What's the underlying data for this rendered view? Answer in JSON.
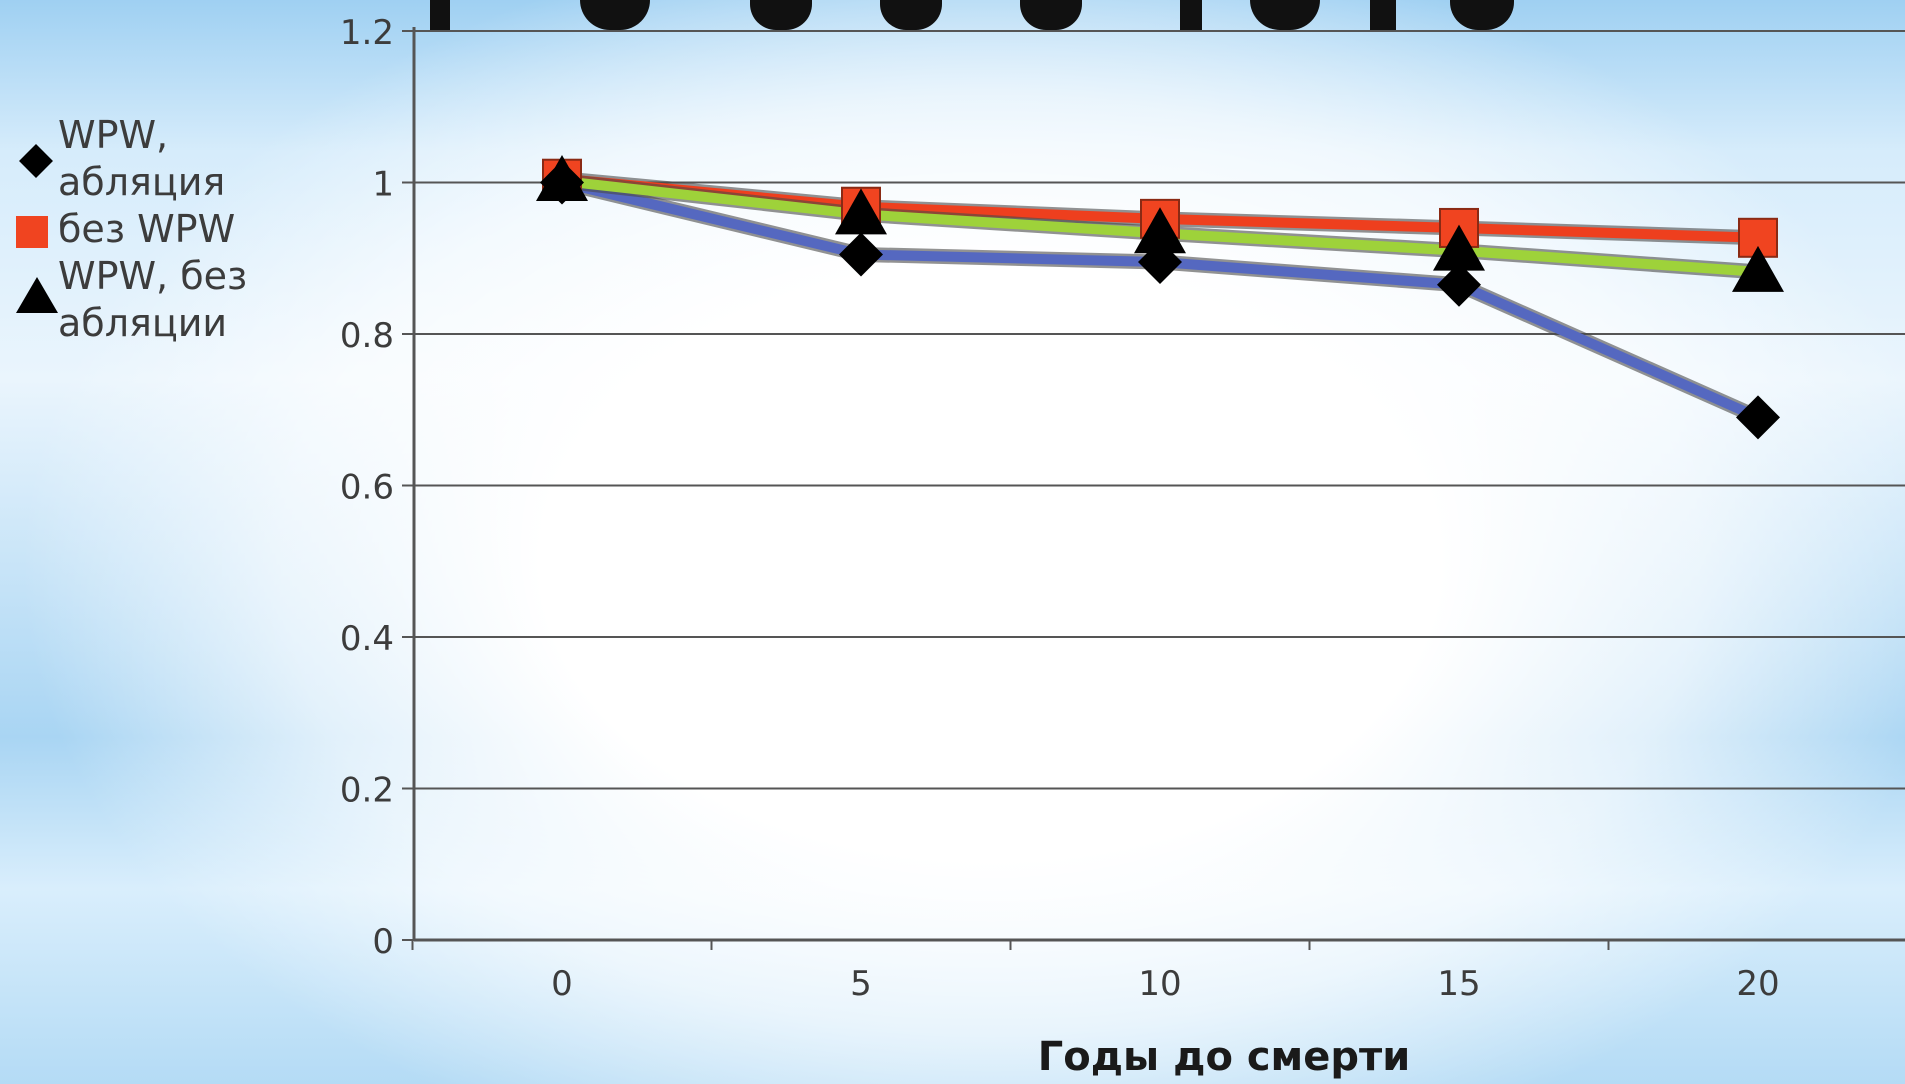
{
  "chart_data": {
    "type": "line",
    "title": "",
    "xlabel": "Годы до смерти",
    "ylabel": "",
    "x": [
      0,
      5,
      10,
      15,
      20
    ],
    "xlim": [
      -5,
      25
    ],
    "ylim": [
      0,
      1.2
    ],
    "yticks": [
      0,
      0.2,
      0.4,
      0.6,
      0.8,
      1,
      1.2
    ],
    "ytick_labels": [
      "0",
      "0.2",
      "0.4",
      "0.6",
      "0.8",
      "1",
      "1.2"
    ],
    "xtick_labels": [
      "0",
      "5",
      "10",
      "15",
      "20"
    ],
    "grid": "horizontal",
    "legend_position": "left",
    "series": [
      {
        "name": "WPW, абляция",
        "marker": "diamond",
        "line_color": "#5568c0",
        "marker_color": "#000000",
        "values": [
          1.0,
          0.905,
          0.895,
          0.865,
          0.69
        ]
      },
      {
        "name": "без WPW",
        "marker": "square",
        "line_color": "#ee3f1e",
        "marker_color": "#f04420",
        "values": [
          1.005,
          0.968,
          0.952,
          0.94,
          0.927
        ]
      },
      {
        "name": "WPW, без абляции",
        "marker": "triangle",
        "line_color": "#9ed23a",
        "marker_color": "#000000",
        "values": [
          1.002,
          0.958,
          0.933,
          0.91,
          0.882
        ]
      }
    ]
  }
}
